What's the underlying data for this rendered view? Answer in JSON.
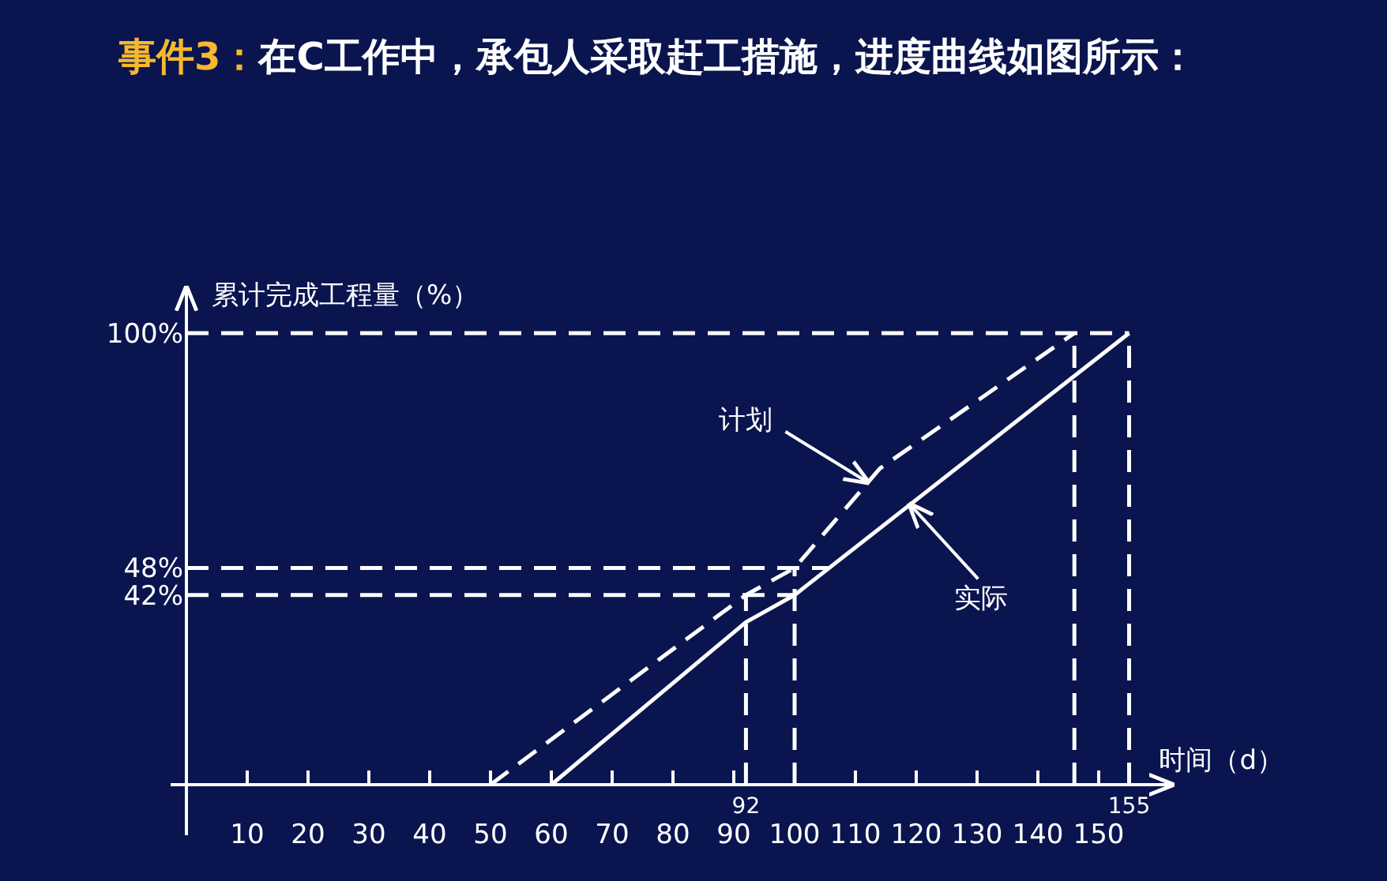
{
  "chart_data": {
    "type": "line",
    "title": "事件3：",
    "subtitle": "在C工作中，承包人采取赶工措施，进度曲线如图所示：",
    "xlabel": "时间（d）",
    "ylabel": "累计完成工程量（%）",
    "xlim": [
      0,
      162
    ],
    "ylim": [
      0,
      110
    ],
    "xticks": [
      10,
      20,
      30,
      40,
      50,
      60,
      70,
      80,
      90,
      100,
      110,
      120,
      130,
      140,
      150
    ],
    "yticks": [
      {
        "value": 42,
        "label": "42%"
      },
      {
        "value": 48,
        "label": "48%"
      },
      {
        "value": 100,
        "label": "100%"
      }
    ],
    "series": [
      {
        "color": "#ffffff",
        "line_style": "dashed",
        "x": [
          50,
          92,
          100,
          114,
          146
        ],
        "values": [
          0,
          42,
          48,
          70,
          100
        ]
      },
      {
        "color": "#ffffff",
        "line_style": "solid",
        "x": [
          60,
          92,
          100,
          155
        ],
        "values": [
          0,
          36,
          42,
          100
        ]
      }
    ],
    "ref_lines": [
      {
        "axis": "x",
        "value": 92,
        "label": "92",
        "line_style": "dashed",
        "color": "#ffffff"
      },
      {
        "axis": "x",
        "value": 100,
        "label": null,
        "line_style": "dashed",
        "color": "#ffffff"
      },
      {
        "axis": "x",
        "value": 146,
        "label": null,
        "line_style": "dashed",
        "color": "#ffffff"
      },
      {
        "axis": "x",
        "value": 155,
        "label": "155",
        "line_style": "dashed",
        "color": "#ffffff"
      },
      {
        "axis": "y",
        "value": 42,
        "label": null,
        "line_style": "dashed",
        "color": "#ffffff"
      },
      {
        "axis": "y",
        "value": 48,
        "label": null,
        "line_style": "dashed",
        "color": "#ffffff"
      },
      {
        "axis": "y",
        "value": 100,
        "label": null,
        "line_style": "dashed",
        "color": "#ffffff"
      }
    ],
    "annotations": [
      {
        "text": "计划",
        "x": 112,
        "y": 67
      },
      {
        "text": "实际",
        "x": 119,
        "y": 62
      }
    ],
    "marker": "none"
  }
}
